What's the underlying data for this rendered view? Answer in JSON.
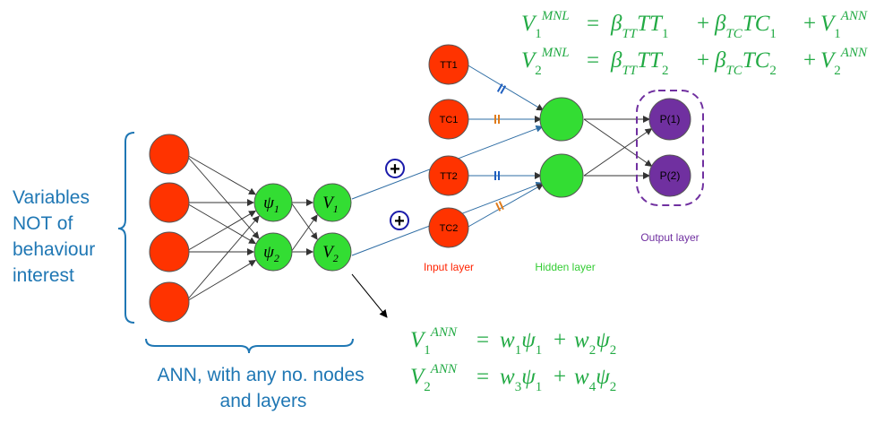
{
  "left_label": {
    "lines": [
      "Variables",
      "NOT of",
      "behaviour",
      "interest"
    ]
  },
  "bottom_label": {
    "lines": [
      "ANN, with any no. nodes",
      "and layers"
    ]
  },
  "ann": {
    "psi1": {
      "sym": "ψ",
      "sub": "1"
    },
    "psi2": {
      "sym": "ψ",
      "sub": "2"
    },
    "v1": {
      "sym": "V",
      "sub": "1"
    },
    "v2": {
      "sym": "V",
      "sub": "2"
    }
  },
  "mnl_inputs": [
    "TT1",
    "TC1",
    "TT2",
    "TC2"
  ],
  "mnl_outputs": [
    "P(1)",
    "P(2)"
  ],
  "layer_labels": {
    "input": "Input layer",
    "hidden": "Hidden layer",
    "output": "Output layer"
  },
  "plus_symbol": "+",
  "equations_mnl": [
    {
      "lhs": "V",
      "lhs_sub": "1",
      "lhs_sup": "MNL",
      "eq": "=",
      "t1": "β",
      "t1_sub": "TT",
      "t1_var": "TT",
      "t1_var_sub": "1",
      "op1": "+",
      "t2": "β",
      "t2_sub": "TC",
      "t2_var": "TC",
      "t2_var_sub": "1",
      "op2": "+",
      "t3": "V",
      "t3_sub": "1",
      "t3_sup": "ANN"
    },
    {
      "lhs": "V",
      "lhs_sub": "2",
      "lhs_sup": "MNL",
      "eq": "=",
      "t1": "β",
      "t1_sub": "TT",
      "t1_var": "TT",
      "t1_var_sub": "2",
      "op1": "+",
      "t2": "β",
      "t2_sub": "TC",
      "t2_var": "TC",
      "t2_var_sub": "2",
      "op2": "+",
      "t3": "V",
      "t3_sub": "2",
      "t3_sup": "ANN"
    }
  ],
  "equations_ann": [
    {
      "lhs": "V",
      "lhs_sub": "1",
      "lhs_sup": "ANN",
      "eq": "=",
      "a": "w",
      "a_sub": "1",
      "b": "ψ",
      "b_sub": "1",
      "op": "+",
      "c": "w",
      "c_sub": "2",
      "d": "ψ",
      "d_sub": "2"
    },
    {
      "lhs": "V",
      "lhs_sub": "2",
      "lhs_sup": "ANN",
      "eq": "=",
      "a": "w",
      "a_sub": "3",
      "b": "ψ",
      "b_sub": "1",
      "op": "+",
      "c": "w",
      "c_sub": "4",
      "d": "ψ",
      "d_sub": "2"
    }
  ],
  "colors": {
    "input_node": "#ff3300",
    "hidden_node": "#33dd33",
    "output_node": "#7030a0",
    "blue_text": "#1f77b4",
    "eq_green": "#22aa44",
    "red_text": "#ff2200",
    "green_text": "#33cc33",
    "purple_text": "#7030a0",
    "line_dark": "#333333",
    "line_blue": "#2e6da4",
    "mark_blue": "#1f5fbf",
    "mark_orange": "#e07b1a",
    "plus_blue": "#1a1aaa"
  }
}
